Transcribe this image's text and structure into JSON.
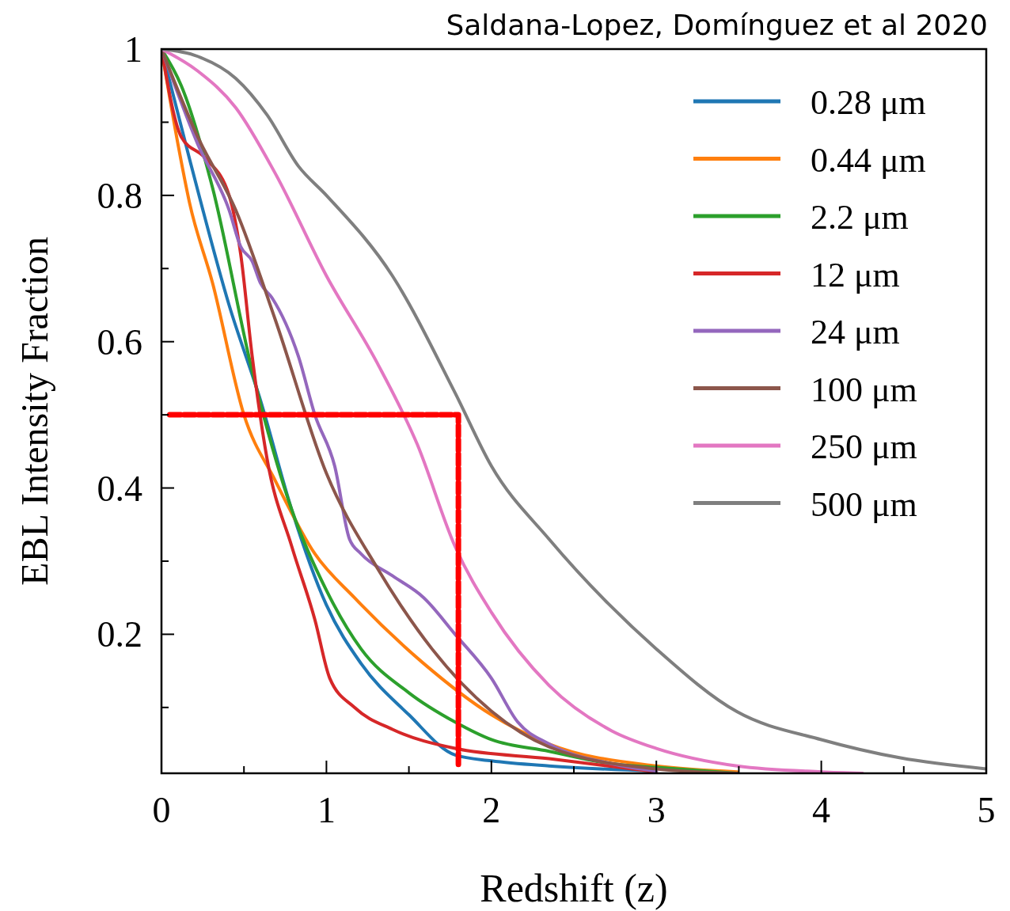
{
  "chart_data": {
    "type": "line",
    "xlabel": "Redshift (z)",
    "ylabel": "EBL Intensity Fraction",
    "annotations": [
      "Saldana-Lopez, Domínguez et al 2020"
    ],
    "xlim": [
      0,
      5
    ],
    "ylim": [
      0.01,
      1
    ],
    "xticks": [
      0,
      {
        "value": 0.5,
        "label": null
      },
      1,
      {
        "value": 1.5,
        "label": null
      },
      2,
      {
        "value": 2.5,
        "label": null
      },
      3,
      {
        "value": 3.5,
        "label": null
      },
      4,
      {
        "value": 4.5,
        "label": null
      },
      5
    ],
    "yticks": [
      {
        "value": 0.1,
        "label": null
      },
      0.2,
      {
        "value": 0.3,
        "label": null
      },
      0.4,
      {
        "value": 0.5,
        "label": null
      },
      0.6,
      {
        "value": 0.7,
        "label": null
      },
      0.8,
      {
        "value": 0.9,
        "label": null
      },
      1
    ],
    "grid": false,
    "legend": "top right",
    "line_style": "solid",
    "series": [
      {
        "name": "0.28 μm",
        "color": "#1f77b4",
        "x": [
          0,
          0.17,
          0.41,
          0.6,
          0.79,
          1.0,
          1.21,
          1.5,
          1.78,
          2.0,
          2.35,
          3.0
        ],
        "values": [
          1,
          0.85,
          0.65,
          0.52,
          0.37,
          0.24,
          0.16,
          0.09,
          0.035,
          0.027,
          0.02,
          0.013
        ]
      },
      {
        "name": "0.44 μm",
        "color": "#ff7f0e",
        "x": [
          0,
          0.1,
          0.17,
          0.31,
          0.5,
          0.69,
          0.93,
          1.17,
          1.59,
          2.0,
          2.35,
          3.0,
          3.49
        ],
        "values": [
          1,
          0.87,
          0.79,
          0.68,
          0.5,
          0.41,
          0.31,
          0.25,
          0.16,
          0.09,
          0.05,
          0.02,
          0.012
        ]
      },
      {
        "name": "2.2 μm",
        "color": "#2ca02c",
        "x": [
          0,
          0.12,
          0.31,
          0.55,
          0.79,
          1.0,
          1.21,
          1.5,
          1.78,
          2.0,
          2.35,
          2.73,
          3.0,
          3.49
        ],
        "values": [
          1,
          0.95,
          0.81,
          0.56,
          0.37,
          0.26,
          0.18,
          0.12,
          0.08,
          0.056,
          0.04,
          0.023,
          0.018,
          0.01
        ]
      },
      {
        "name": "12 μm",
        "color": "#d62728",
        "x": [
          0,
          0.12,
          0.27,
          0.41,
          0.48,
          0.55,
          0.64,
          0.79,
          0.93,
          1.02,
          1.17,
          1.4,
          1.78,
          2.35,
          3.0
        ],
        "values": [
          1,
          0.88,
          0.85,
          0.8,
          0.72,
          0.58,
          0.44,
          0.32,
          0.22,
          0.14,
          0.1,
          0.07,
          0.044,
          0.03,
          0.012
        ]
      },
      {
        "name": "24 μm",
        "color": "#9467bd",
        "x": [
          0,
          0.22,
          0.41,
          0.48,
          0.55,
          0.6,
          0.67,
          0.83,
          0.93,
          1.05,
          1.14,
          1.21,
          1.4,
          1.59,
          1.78,
          2.0,
          2.16,
          2.35,
          2.73,
          3.0
        ],
        "values": [
          1,
          0.87,
          0.78,
          0.73,
          0.71,
          0.68,
          0.66,
          0.58,
          0.5,
          0.43,
          0.33,
          0.31,
          0.28,
          0.25,
          0.2,
          0.14,
          0.08,
          0.05,
          0.023,
          0.013
        ]
      },
      {
        "name": "100 μm",
        "color": "#8c564b",
        "x": [
          0,
          0.22,
          0.45,
          0.69,
          1.0,
          1.31,
          1.64,
          2.0,
          2.35,
          3.0,
          3.49
        ],
        "values": [
          1,
          0.88,
          0.78,
          0.63,
          0.42,
          0.29,
          0.18,
          0.095,
          0.046,
          0.016,
          0.01
        ]
      },
      {
        "name": "250 μm",
        "color": "#e377c2",
        "x": [
          0,
          0.22,
          0.45,
          0.69,
          1.0,
          1.31,
          1.55,
          1.78,
          2.0,
          2.35,
          2.73,
          3.0,
          3.49,
          4.0,
          4.25
        ],
        "values": [
          1,
          0.97,
          0.92,
          0.83,
          0.69,
          0.57,
          0.46,
          0.32,
          0.23,
          0.13,
          0.068,
          0.044,
          0.02,
          0.012,
          0.01
        ]
      },
      {
        "name": "500 μm",
        "color": "#7f7f7f",
        "x": [
          0,
          0.22,
          0.45,
          0.64,
          0.83,
          1.0,
          1.4,
          1.78,
          2.0,
          2.35,
          3.0,
          3.49,
          4.0,
          4.48,
          5.0
        ],
        "values": [
          1,
          0.99,
          0.96,
          0.91,
          0.84,
          0.8,
          0.69,
          0.53,
          0.43,
          0.33,
          0.18,
          0.094,
          0.056,
          0.031,
          0.016
        ]
      },
      {
        "color": "#ff0000",
        "line_style": "dashed",
        "x": [
          0.05,
          1.8,
          1.8
        ],
        "values": [
          0.5,
          0.5,
          0.02
        ]
      }
    ]
  }
}
